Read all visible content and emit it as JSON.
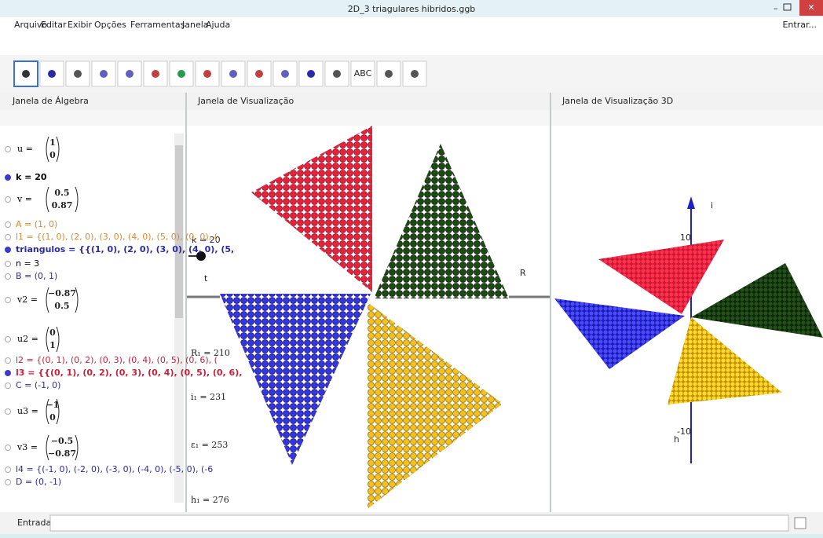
{
  "window": {
    "title": "2D_3 triagulares hibridos.ggb"
  },
  "menu": {
    "items": [
      "Arquivo",
      "Editar",
      "Exibir",
      "Opções",
      "Ferramentas",
      "Janela",
      "Ajuda"
    ],
    "login": "Entrar..."
  },
  "toolbar": {
    "text_tool": "ABC"
  },
  "panels": {
    "algebra": "Janela de Álgebra",
    "graphics": "Janela de Visualização",
    "graphics3d": "Janela de Visualização 3D"
  },
  "algebra": {
    "items": [
      {
        "name": "u =",
        "components": [
          "1",
          "0"
        ],
        "color": "#000000",
        "visible": false
      },
      {
        "text": "k = 20",
        "color": "#000000",
        "visible": true
      },
      {
        "name": "v =",
        "components": [
          "0.5",
          "0.87"
        ],
        "color": "#000000",
        "visible": false
      },
      {
        "text": "A = (1, 0)",
        "color": "#e08a2a",
        "visible": false
      },
      {
        "text": "l1 = {(1, 0), (2, 0), (3, 0), (4, 0), (5, 0), (0, 0), (",
        "color": "#e08a2a",
        "visible": false
      },
      {
        "text": "triangulos = {{(1, 0), (2, 0), (3, 0), (4, 0), (5,",
        "color": "#2a2aa8",
        "visible": true
      },
      {
        "text": "n = 3",
        "color": "#000000",
        "visible": false
      },
      {
        "text": "B = (0, 1)",
        "color": "#2a2aa8",
        "visible": false
      },
      {
        "name": "v2 =",
        "components": [
          "−0.87",
          "0.5"
        ],
        "color": "#000000",
        "visible": false
      },
      {
        "name": "u2 =",
        "components": [
          "0",
          "1"
        ],
        "color": "#000000",
        "visible": false
      },
      {
        "text": "l2 = {(0, 1), (0, 2), (0, 3), (0, 4), (0, 5), (0, 6), (",
        "color": "#c8203a",
        "visible": false
      },
      {
        "text": "l3 = {{(0, 1), (0, 2), (0, 3), (0, 4), (0, 5), (0, 6),",
        "color": "#c8203a",
        "visible": true
      },
      {
        "text": "C = (-1, 0)",
        "color": "#2a2aa8",
        "visible": false
      },
      {
        "name": "u3 =",
        "components": [
          "−1",
          "0"
        ],
        "color": "#000000",
        "visible": false
      },
      {
        "name": "v3 =",
        "components": [
          "−0.5",
          "−0.87"
        ],
        "color": "#000000",
        "visible": false
      },
      {
        "text": "l4 = {(-1, 0), (-2, 0), (-3, 0), (-4, 0), (-5, 0), (-6",
        "color": "#2a2aa8",
        "visible": false
      },
      {
        "text": "D = (0, -1)",
        "color": "#2a2aa8",
        "visible": false
      }
    ]
  },
  "graphics": {
    "slider": "k = 20",
    "label_t": "t",
    "label_r": "R",
    "texts": [
      "R₁ = 210",
      "i₁ = 231",
      "ε₁ = 253",
      "h₁ = 276"
    ]
  },
  "graphics3d": {
    "axis_top": "i",
    "axis_bottom": "h",
    "tick_top": "10",
    "tick_bottom": "-10"
  },
  "input": {
    "label": "Entrada:"
  }
}
